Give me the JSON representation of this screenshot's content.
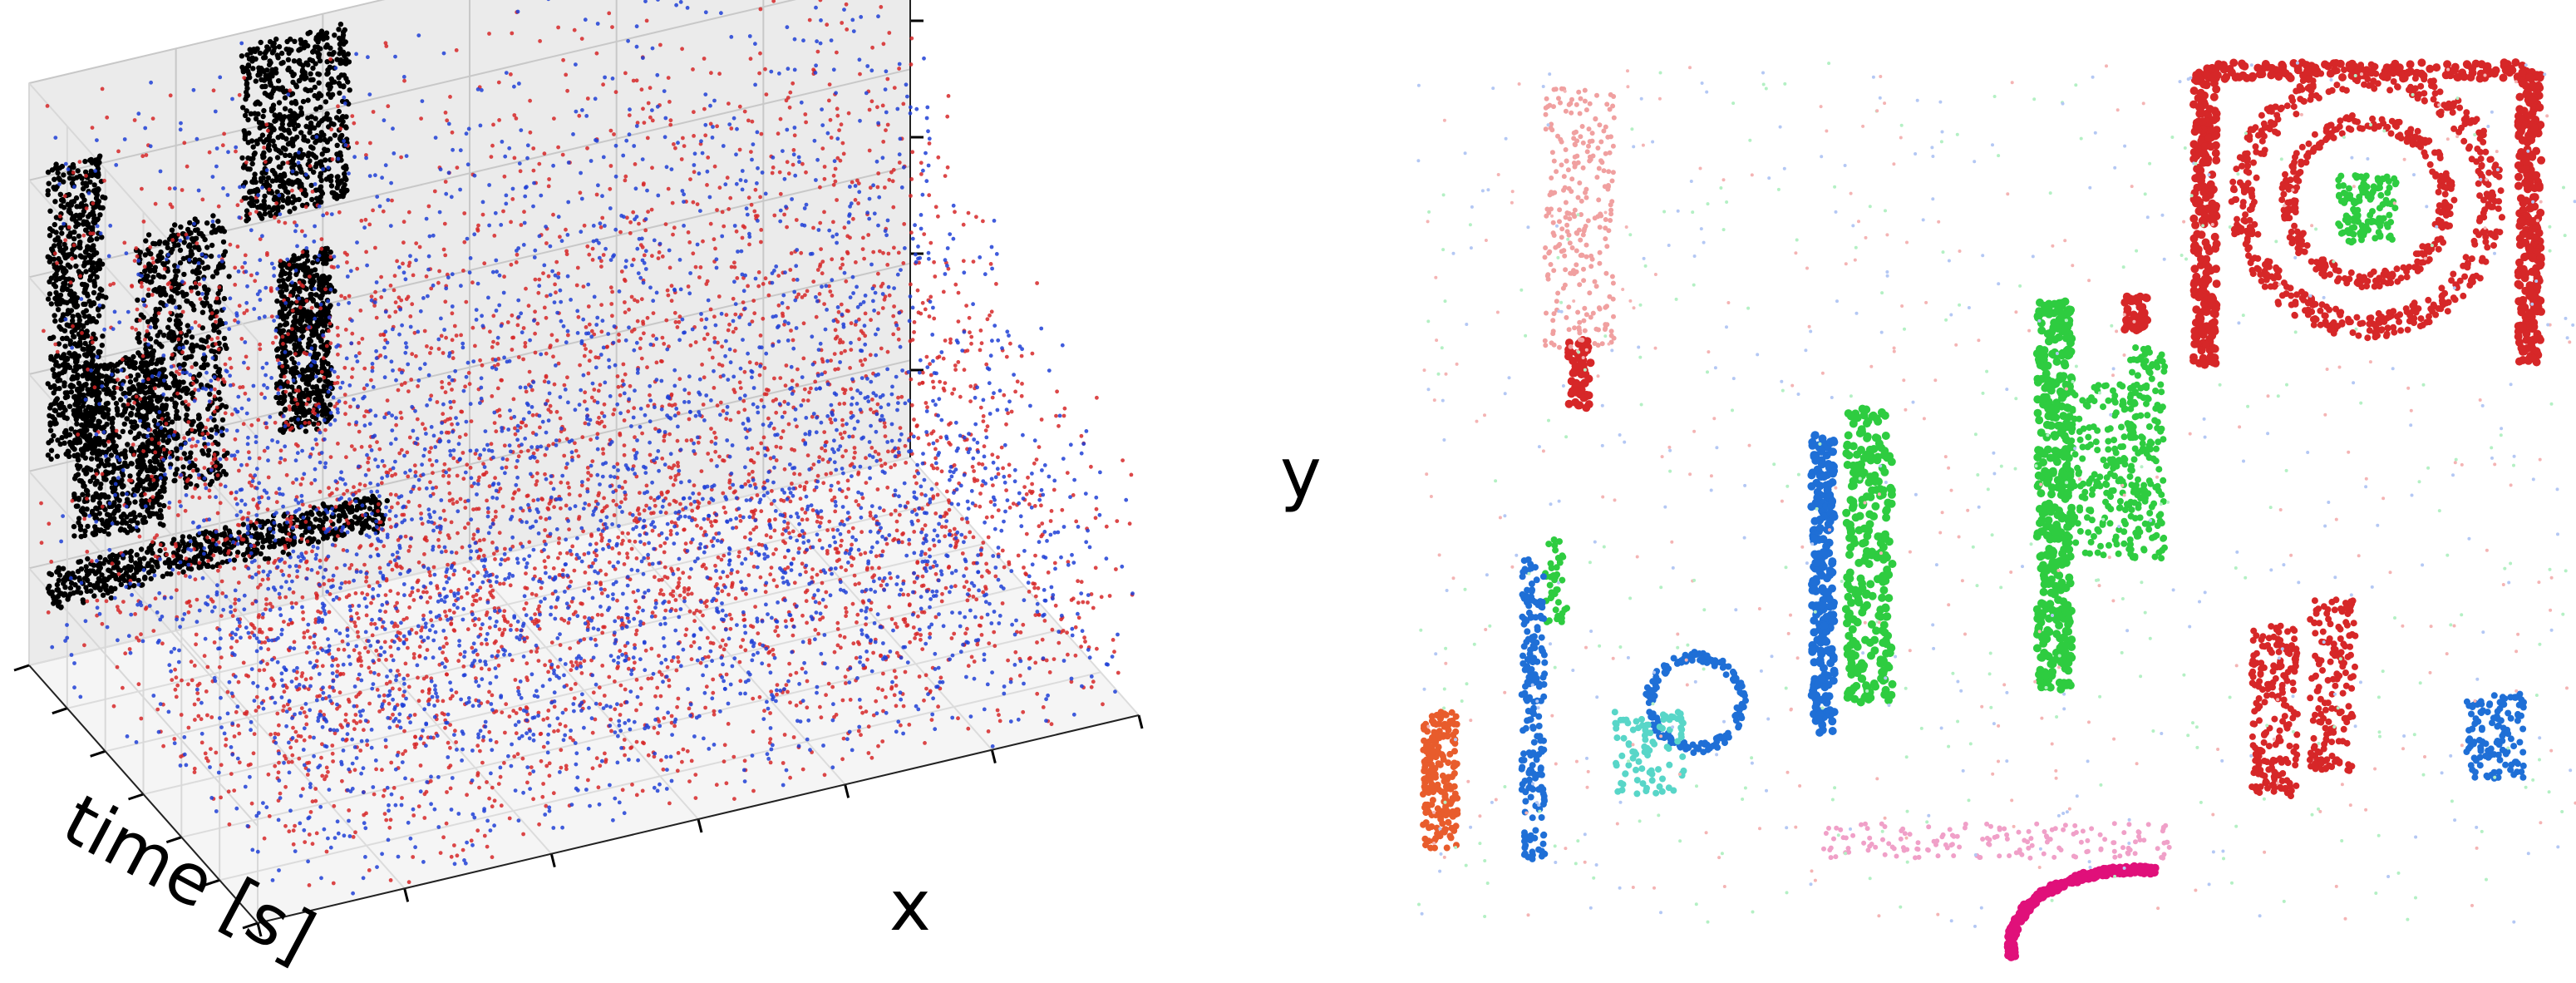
{
  "chart_data": [
    {
      "type": "scatter",
      "projection": "3d",
      "title": "",
      "xlabel": "time [s]",
      "ylabel": "x",
      "zlabel": "y",
      "grid": true,
      "tick_labels": false,
      "series": [
        {
          "color": "#000000",
          "point_count": 4000
        },
        {
          "color": "#d62728",
          "point_count": 4000
        },
        {
          "color": "#1f3fd6",
          "point_count": 3400
        }
      ]
    },
    {
      "type": "heatmap",
      "title": "",
      "note_colors": [
        "#d62728",
        "#2ecc40",
        "#1f6fd6",
        "#e0107a",
        "#ffffff"
      ]
    }
  ]
}
